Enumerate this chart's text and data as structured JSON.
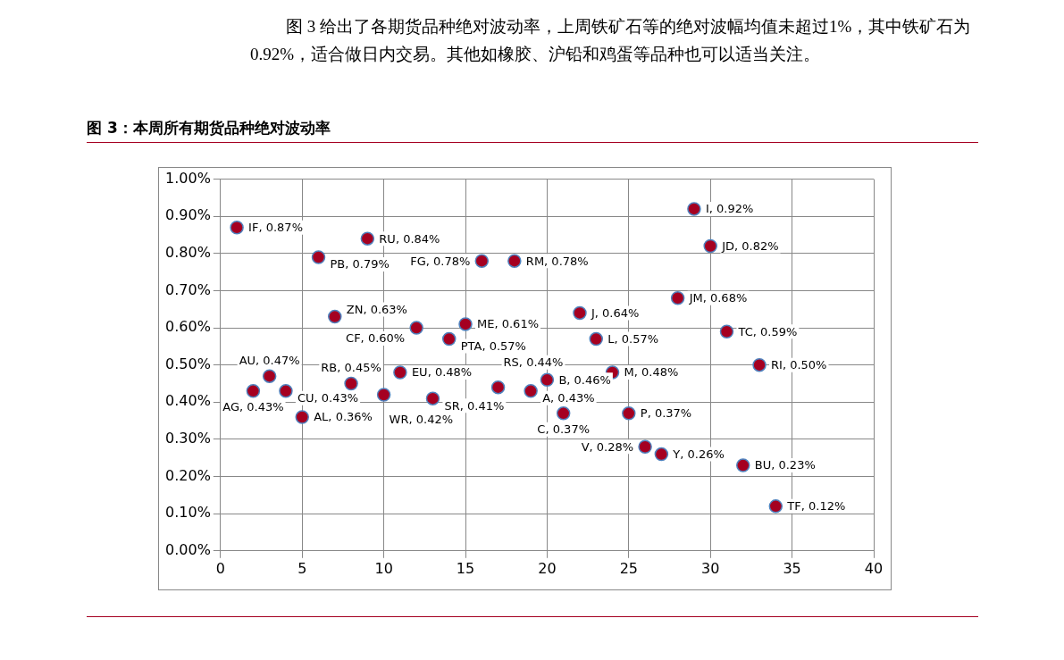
{
  "chart_data": {
    "type": "scatter",
    "title": "图 3：本周所有期货品种绝对波动率",
    "annotations": [
      "图 3 给出了各期货品种绝对波动率，上周铁矿石等的绝对波幅均值未超过1%，其中铁矿石为 0.92%，适合做日内交易。其他如橡胶、沪铅和鸡蛋等品种也可以适当关注。"
    ],
    "x": [
      1,
      2,
      3,
      4,
      5,
      6,
      7,
      8,
      9,
      10,
      11,
      12,
      13,
      14,
      15,
      16,
      17,
      18,
      19,
      20,
      21,
      22,
      23,
      24,
      25,
      26,
      27,
      28,
      29,
      30,
      31,
      32,
      33,
      34
    ],
    "values": [
      0.87,
      0.43,
      0.47,
      0.43,
      0.36,
      0.79,
      0.63,
      0.45,
      0.84,
      0.42,
      0.48,
      0.6,
      0.41,
      0.57,
      0.61,
      0.78,
      0.44,
      0.78,
      0.43,
      0.46,
      0.37,
      0.64,
      0.57,
      0.48,
      0.37,
      0.28,
      0.26,
      0.68,
      0.92,
      0.82,
      0.59,
      0.23,
      0.5,
      0.12
    ],
    "value_labels": [
      "IF, 0.87%",
      "AG, 0.43%",
      "AU, 0.47%",
      "CU, 0.43%",
      "AL, 0.36%",
      "PB, 0.79%",
      "ZN, 0.63%",
      "RB, 0.45%",
      "RU, 0.84%",
      "WR, 0.42%",
      "EU, 0.48%",
      "CF, 0.60%",
      "SR, 0.41%",
      "PTA, 0.57%",
      "ME, 0.61%",
      "FG, 0.78%",
      "RS, 0.44%",
      "RM, 0.78%",
      "A, 0.43%",
      "B, 0.46%",
      "C, 0.37%",
      "J, 0.64%",
      "L, 0.57%",
      "M, 0.48%",
      "P, 0.37%",
      "V, 0.28%",
      "Y, 0.26%",
      "JM, 0.68%",
      "I, 0.92%",
      "JD, 0.82%",
      "TC, 0.59%",
      "BU, 0.23%",
      "RI, 0.50%",
      "TF, 0.12%"
    ],
    "color": "#a50021",
    "marker": "circle",
    "grid": true,
    "legend": false,
    "xlim": [
      0,
      40
    ],
    "xticks": [
      0,
      5,
      10,
      15,
      20,
      25,
      30,
      35,
      40
    ],
    "ylim": [
      0,
      1
    ],
    "yticks": [
      {
        "value": 0,
        "label": "0.00%"
      },
      {
        "value": 0.1,
        "label": "0.10%"
      },
      {
        "value": 0.2,
        "label": "0.20%"
      },
      {
        "value": 0.3,
        "label": "0.30%"
      },
      {
        "value": 0.4,
        "label": "0.40%"
      },
      {
        "value": 0.5,
        "label": "0.50%"
      },
      {
        "value": 0.6,
        "label": "0.60%"
      },
      {
        "value": 0.7,
        "label": "0.70%"
      },
      {
        "value": 0.8,
        "label": "0.80%"
      },
      {
        "value": 0.9,
        "label": "0.90%"
      },
      {
        "value": 1,
        "label": "1.00%"
      }
    ]
  }
}
